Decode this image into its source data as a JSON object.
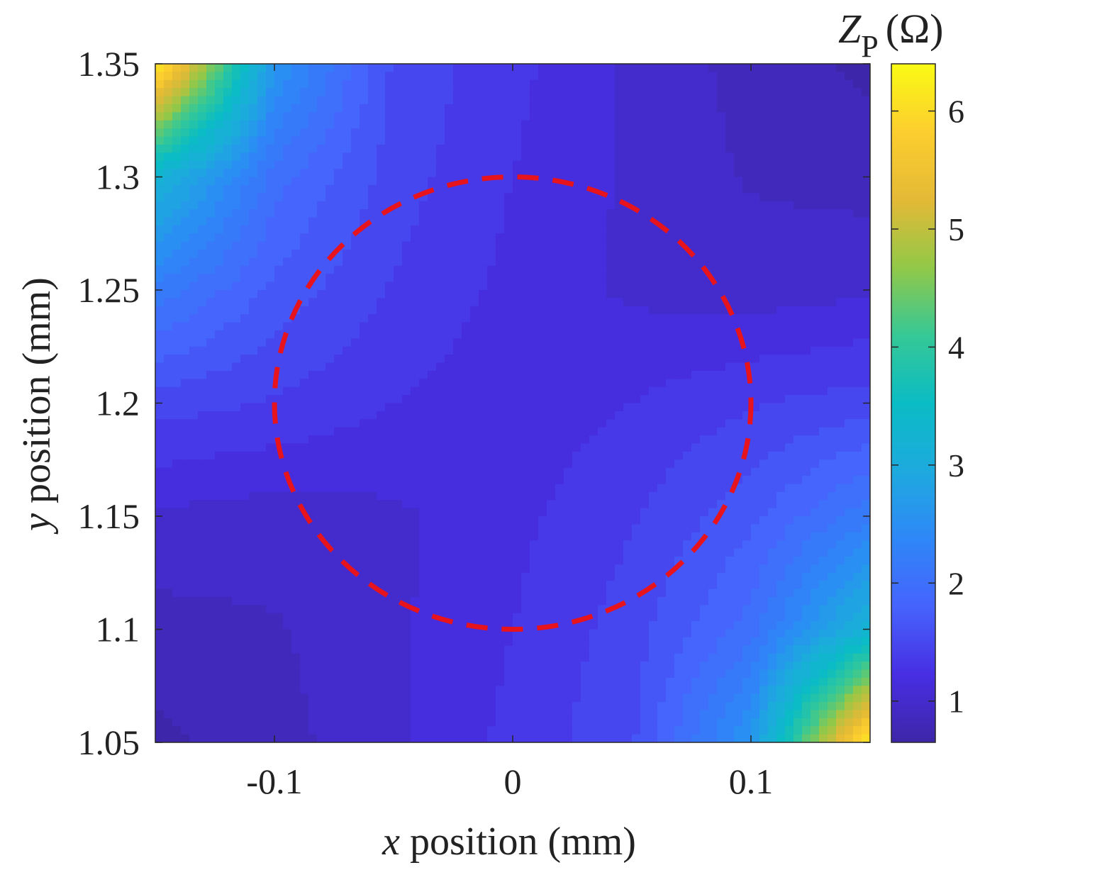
{
  "chart_data": {
    "type": "heatmap",
    "xlabel_var": "x",
    "xlabel_rest": " position (mm)",
    "ylabel_var": "y",
    "ylabel_rest": " position (mm)",
    "xlim": [
      -0.15,
      0.15
    ],
    "ylim": [
      1.05,
      1.35
    ],
    "xticks": [
      -0.1,
      0,
      0.1
    ],
    "xtick_labels": [
      "-0.1",
      "0",
      "0.1"
    ],
    "yticks": [
      1.05,
      1.1,
      1.15,
      1.2,
      1.25,
      1.3,
      1.35
    ],
    "ytick_labels": [
      "1.05",
      "1.1",
      "1.15",
      "1.2",
      "1.25",
      "1.3",
      "1.35"
    ],
    "colorbar": {
      "label_var": "Z",
      "label_sub": "P",
      "label_unit": "(Ω)",
      "range": [
        0.65,
        6.4
      ],
      "ticks": [
        1,
        2,
        3,
        4,
        5,
        6
      ],
      "tick_labels": [
        "1",
        "2",
        "3",
        "4",
        "5",
        "6"
      ],
      "colormap": "parula"
    },
    "z_grid": {
      "x": [
        -0.15,
        -0.1,
        -0.05,
        0,
        0.05,
        0.1,
        0.15
      ],
      "y": [
        1.35,
        1.3,
        1.25,
        1.2,
        1.15,
        1.1,
        1.05
      ],
      "z": [
        [
          6.3,
          2.6,
          1.55,
          1.3,
          1.05,
          0.85,
          0.7
        ],
        [
          3.2,
          2.0,
          1.5,
          1.25,
          1.05,
          0.9,
          0.85
        ],
        [
          2.2,
          1.7,
          1.4,
          1.2,
          1.05,
          1.0,
          1.05
        ],
        [
          1.5,
          1.4,
          1.25,
          1.15,
          1.25,
          1.4,
          1.5
        ],
        [
          1.05,
          1.0,
          1.05,
          1.2,
          1.4,
          1.7,
          2.2
        ],
        [
          0.85,
          0.9,
          1.05,
          1.25,
          1.5,
          2.0,
          3.2
        ],
        [
          0.7,
          0.85,
          1.05,
          1.3,
          1.55,
          2.6,
          6.3
        ]
      ]
    },
    "overlay": {
      "shape": "circle",
      "style": "dashed",
      "color": "#e8141d",
      "center": [
        0,
        1.2
      ],
      "radius": 0.1
    }
  }
}
